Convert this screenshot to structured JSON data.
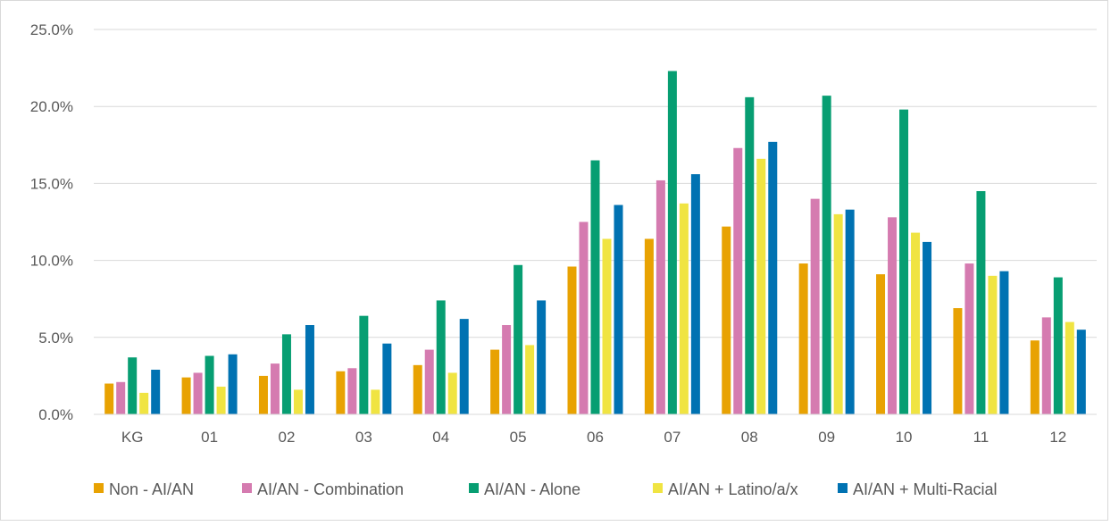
{
  "chart_data": {
    "type": "bar",
    "title": "",
    "xlabel": "",
    "ylabel": "",
    "ylim": [
      0,
      25
    ],
    "yticks": [
      "0.0%",
      "5.0%",
      "10.0%",
      "15.0%",
      "20.0%",
      "25.0%"
    ],
    "ytick_values": [
      0,
      5,
      10,
      15,
      20,
      25
    ],
    "grid": true,
    "legend_position": "bottom",
    "categories": [
      "KG",
      "01",
      "02",
      "03",
      "04",
      "05",
      "06",
      "07",
      "08",
      "09",
      "10",
      "11",
      "12"
    ],
    "series": [
      {
        "name": "Non - AI/AN",
        "color": "#E8A202",
        "values": [
          2.0,
          2.4,
          2.5,
          2.8,
          3.2,
          4.2,
          9.6,
          11.4,
          12.2,
          9.8,
          9.1,
          6.9,
          4.8
        ]
      },
      {
        "name": "AI/AN - Combination",
        "color": "#D57BB0",
        "values": [
          2.1,
          2.7,
          3.3,
          3.0,
          4.2,
          5.8,
          12.5,
          15.2,
          17.3,
          14.0,
          12.8,
          9.8,
          6.3
        ]
      },
      {
        "name": "AI/AN - Alone",
        "color": "#079E72",
        "values": [
          3.7,
          3.8,
          5.2,
          6.4,
          7.4,
          9.7,
          16.5,
          22.3,
          20.6,
          20.7,
          19.8,
          14.5,
          8.9
        ]
      },
      {
        "name": "AI/AN + Latino/a/x",
        "color": "#F0E442",
        "values": [
          1.4,
          1.8,
          1.6,
          1.6,
          2.7,
          4.5,
          11.4,
          13.7,
          16.6,
          13.0,
          11.8,
          9.0,
          6.0
        ]
      },
      {
        "name": "AI/AN + Multi-Racial",
        "color": "#0072B2",
        "values": [
          2.9,
          3.9,
          5.8,
          4.6,
          6.2,
          7.4,
          13.6,
          15.6,
          17.7,
          13.3,
          11.2,
          9.3,
          5.5
        ]
      }
    ]
  }
}
